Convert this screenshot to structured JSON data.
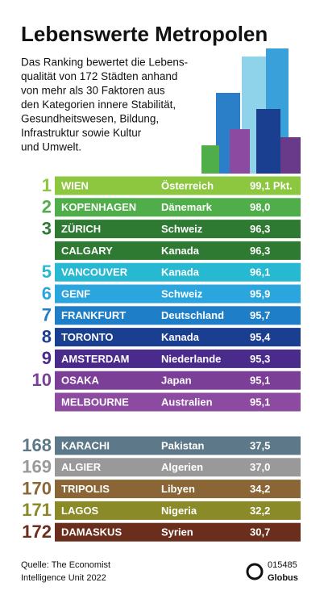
{
  "header": {
    "title": "Lebenswerte Metropolen",
    "intro": [
      "Das Ranking bewertet die Lebens-",
      "qualität von 172 Städten anhand",
      "von mehr als 30 Faktoren aus",
      "den Kategorien innere Stabilität,",
      "Gesundheitswesen, Bildung,",
      "Infrastruktur sowie Kultur",
      "und Umwelt."
    ]
  },
  "table": {
    "top": [
      {
        "rank": "1",
        "city": "WIEN",
        "country": "Österreich",
        "score": "99,1 Pkt.",
        "color": "#8dc63f"
      },
      {
        "rank": "2",
        "city": "KOPENHAGEN",
        "country": "Dänemark",
        "score": "98,0",
        "color": "#4fae4a"
      },
      {
        "city": "ZÜRICH",
        "country": "Schweiz",
        "score": "96,3",
        "color": "#2f7a33",
        "rank": "3"
      },
      {
        "city": "CALGARY",
        "country": "Kanada",
        "score": "96,3",
        "color": "#2f7a33"
      },
      {
        "rank": "5",
        "city": "VANCOUVER",
        "country": "Kanada",
        "score": "96,1",
        "color": "#27b8d2"
      },
      {
        "rank": "6",
        "city": "GENF",
        "country": "Schweiz",
        "score": "95,9",
        "color": "#2aa5de"
      },
      {
        "rank": "7",
        "city": "FRANKFURT",
        "country": "Deutschland",
        "score": "95,7",
        "color": "#1f7ec8"
      },
      {
        "rank": "8",
        "city": "TORONTO",
        "country": "Kanada",
        "score": "95,4",
        "color": "#1b3f90"
      },
      {
        "rank": "9",
        "city": "AMSTERDAM",
        "country": "Niederlande",
        "score": "95,3",
        "color": "#4a2a8a"
      },
      {
        "rank": "10",
        "city": "OSAKA",
        "country": "Japan",
        "score": "95,1",
        "color": "#7c3f98"
      },
      {
        "city": "MELBOURNE",
        "country": "Australien",
        "score": "95,1",
        "color": "#8c4aa0"
      }
    ],
    "bottom": [
      {
        "rank": "168",
        "city": "KARACHI",
        "country": "Pakistan",
        "score": "37,5",
        "color": "#5d7888"
      },
      {
        "rank": "169",
        "city": "ALGIER",
        "country": "Algerien",
        "score": "37,0",
        "color": "#999999"
      },
      {
        "rank": "170",
        "city": "TRIPOLIS",
        "country": "Libyen",
        "score": "34,2",
        "color": "#8a6636"
      },
      {
        "rank": "171",
        "city": "LAGOS",
        "country": "Nigeria",
        "score": "32,2",
        "color": "#8a8a28"
      },
      {
        "rank": "172",
        "city": "DAMASKUS",
        "country": "Syrien",
        "score": "30,7",
        "color": "#6b2d1c"
      }
    ]
  },
  "footer": {
    "source": [
      "Quelle: The Economist",
      "Intelligence Unit 2022"
    ],
    "code": "015485",
    "brand": "Globus"
  }
}
